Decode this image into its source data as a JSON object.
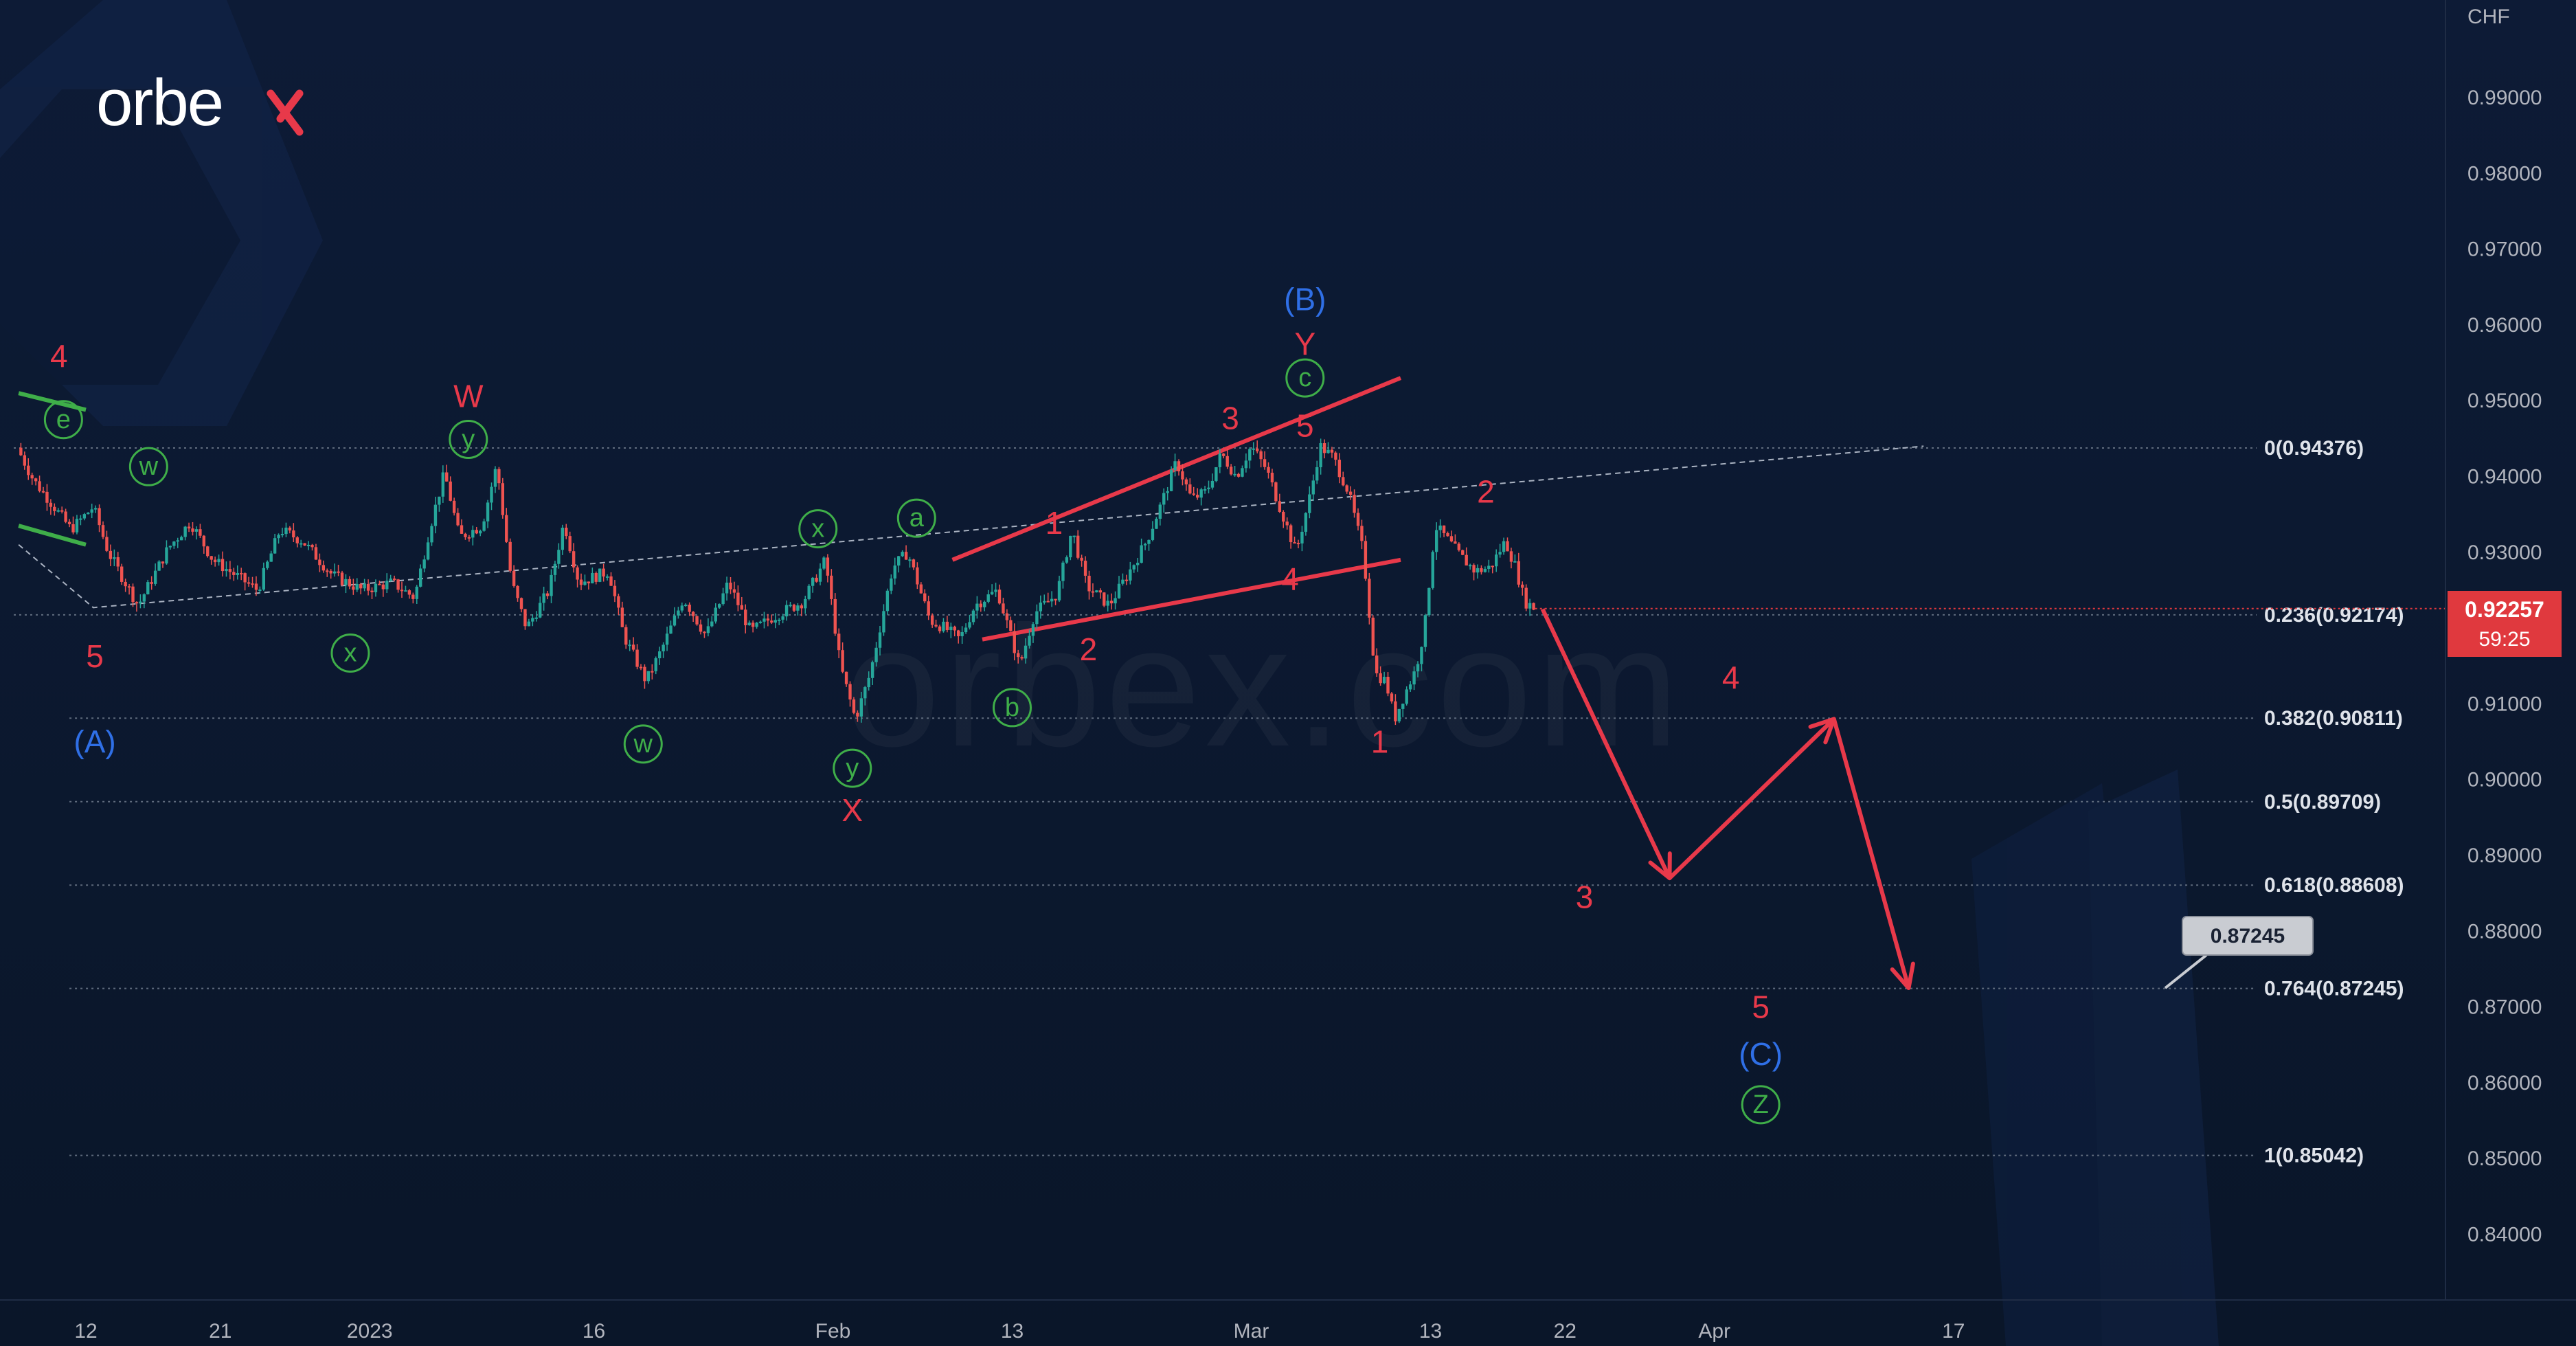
{
  "brand": {
    "name": "orbex",
    "watermark": "orbex.com"
  },
  "axis": {
    "currency": "CHF"
  },
  "price_badge": {
    "value": "0.92257",
    "countdown": "59:25"
  },
  "target_badge": {
    "value": "0.87245"
  },
  "colors": {
    "background": "#0c1a33",
    "up_candle": "#26a69a",
    "down_candle": "#ef5350",
    "red_label": "#e8394a",
    "green_label": "#3fae49",
    "blue_label": "#2f6fe6",
    "projection": "#e8394a",
    "green_trend": "#3fae49",
    "fib_line": "#5f6b7d",
    "badge_red": "#e0393e"
  },
  "chart_data": {
    "type": "candlestick",
    "ylim": [
      0.832,
      1.002
    ],
    "y_ticks": [
      "0.99000",
      "0.98000",
      "0.97000",
      "0.96000",
      "0.95000",
      "0.94000",
      "0.93000",
      "0.92000",
      "0.91000",
      "0.90000",
      "0.89000",
      "0.88000",
      "0.87000",
      "0.86000",
      "0.85000",
      "0.84000"
    ],
    "y_tick_values": [
      0.99,
      0.98,
      0.97,
      0.96,
      0.95,
      0.94,
      0.93,
      0.92,
      0.91,
      0.9,
      0.89,
      0.88,
      0.87,
      0.86,
      0.85,
      0.84
    ],
    "x_ticks": [
      {
        "label": "12",
        "day": 0
      },
      {
        "label": "21",
        "day": 9
      },
      {
        "label": "2023",
        "day": 19
      },
      {
        "label": "16",
        "day": 34
      },
      {
        "label": "Feb",
        "day": 50
      },
      {
        "label": "13",
        "day": 62
      },
      {
        "label": "Mar",
        "day": 78
      },
      {
        "label": "13",
        "day": 90
      },
      {
        "label": "22",
        "day": 99
      },
      {
        "label": "Apr",
        "day": 109
      },
      {
        "label": "17",
        "day": 125
      }
    ],
    "fib_levels": [
      {
        "label": "0(0.94376)",
        "value": 0.94376
      },
      {
        "label": "0.236(0.92174)",
        "value": 0.92174
      },
      {
        "label": "0.382(0.90811)",
        "value": 0.90811
      },
      {
        "label": "0.5(0.89709)",
        "value": 0.89709
      },
      {
        "label": "0.618(0.88608)",
        "value": 0.88608
      },
      {
        "label": "0.764(0.87245)",
        "value": 0.87245
      },
      {
        "label": "1(0.85042)",
        "value": 0.85042
      }
    ],
    "price_path": [
      [
        -4.6,
        0.9438
      ],
      [
        -3.5,
        0.9395
      ],
      [
        -2.5,
        0.937
      ],
      [
        -1,
        0.933
      ],
      [
        0.5,
        0.936
      ],
      [
        1.5,
        0.93
      ],
      [
        3.5,
        0.923
      ],
      [
        5.5,
        0.9305
      ],
      [
        7,
        0.934
      ],
      [
        8.5,
        0.929
      ],
      [
        10,
        0.927
      ],
      [
        11.5,
        0.925
      ],
      [
        13,
        0.933
      ],
      [
        14.5,
        0.9315
      ],
      [
        16.5,
        0.927
      ],
      [
        18.5,
        0.925
      ],
      [
        20.5,
        0.926
      ],
      [
        22,
        0.924
      ],
      [
        23,
        0.933
      ],
      [
        24,
        0.9405
      ],
      [
        25,
        0.932
      ],
      [
        26.5,
        0.9335
      ],
      [
        27.5,
        0.9415
      ],
      [
        28.5,
        0.926
      ],
      [
        29.5,
        0.92
      ],
      [
        31,
        0.925
      ],
      [
        32,
        0.934
      ],
      [
        33,
        0.926
      ],
      [
        35,
        0.9275
      ],
      [
        36,
        0.919
      ],
      [
        37.5,
        0.913
      ],
      [
        38.5,
        0.917
      ],
      [
        40,
        0.924
      ],
      [
        41.5,
        0.919
      ],
      [
        43,
        0.926
      ],
      [
        44.5,
        0.9195
      ],
      [
        46,
        0.9215
      ],
      [
        48,
        0.9235
      ],
      [
        49.5,
        0.929
      ],
      [
        50.5,
        0.915
      ],
      [
        51.5,
        0.908
      ],
      [
        52.5,
        0.914
      ],
      [
        54,
        0.928
      ],
      [
        55,
        0.93
      ],
      [
        56.5,
        0.921
      ],
      [
        57.5,
        0.92
      ],
      [
        58.5,
        0.9185
      ],
      [
        59.5,
        0.923
      ],
      [
        61,
        0.925
      ],
      [
        62.5,
        0.915
      ],
      [
        63.5,
        0.922
      ],
      [
        65,
        0.9245
      ],
      [
        66,
        0.933
      ],
      [
        67,
        0.9255
      ],
      [
        68.5,
        0.923
      ],
      [
        70,
        0.928
      ],
      [
        71,
        0.9315
      ],
      [
        72,
        0.9365
      ],
      [
        73,
        0.942
      ],
      [
        74,
        0.937
      ],
      [
        75,
        0.938
      ],
      [
        76,
        0.943
      ],
      [
        77,
        0.94
      ],
      [
        78,
        0.944
      ],
      [
        79,
        0.941
      ],
      [
        80,
        0.9355
      ],
      [
        81,
        0.93
      ],
      [
        82,
        0.938
      ],
      [
        82.6,
        0.944
      ],
      [
        83.5,
        0.9425
      ],
      [
        84.5,
        0.938
      ],
      [
        85.5,
        0.93
      ],
      [
        86.3,
        0.914
      ],
      [
        87,
        0.913
      ],
      [
        87.6,
        0.908
      ],
      [
        88.2,
        0.911
      ],
      [
        89,
        0.9145
      ],
      [
        89.6,
        0.92
      ],
      [
        90.3,
        0.9335
      ],
      [
        91,
        0.932
      ],
      [
        92,
        0.9295
      ],
      [
        93,
        0.9275
      ],
      [
        94,
        0.928
      ],
      [
        95,
        0.9315
      ],
      [
        95.7,
        0.928
      ],
      [
        96.3,
        0.9235
      ],
      [
        97,
        0.9226
      ]
    ],
    "projection": [
      [
        97.5,
        0.9225
      ],
      [
        106,
        0.887
      ],
      [
        117,
        0.908
      ],
      [
        122,
        0.8725
      ]
    ],
    "trendlines": {
      "dashed_channel": [
        [
          -4.5,
          0.931
        ],
        [
          0.5,
          0.9227
        ],
        [
          123,
          0.944
        ]
      ],
      "wedge_upper": [
        [
          58,
          0.929
        ],
        [
          88,
          0.953
        ]
      ],
      "wedge_lower": [
        [
          60,
          0.9185
        ],
        [
          88,
          0.929
        ]
      ],
      "green_upper": [
        [
          -4.5,
          0.951
        ],
        [
          0,
          0.9488
        ]
      ],
      "green_lower": [
        [
          -4.5,
          0.9335
        ],
        [
          0,
          0.931
        ]
      ]
    },
    "wave_labels": [
      {
        "text": "4",
        "day": -1.8,
        "price": 0.9559,
        "color": "red"
      },
      {
        "text": "e",
        "day": -1.5,
        "price": 0.9475,
        "color": "green",
        "circled": true
      },
      {
        "text": "5",
        "day": 0.6,
        "price": 0.9163,
        "color": "red"
      },
      {
        "text": "(A)",
        "day": 0.6,
        "price": 0.905,
        "color": "blue"
      },
      {
        "text": "w",
        "day": 4.2,
        "price": 0.9413,
        "color": "green",
        "circled": true
      },
      {
        "text": "x",
        "day": 17.7,
        "price": 0.9167,
        "color": "green",
        "circled": true
      },
      {
        "text": "W",
        "day": 25.6,
        "price": 0.9506,
        "color": "red"
      },
      {
        "text": "y",
        "day": 25.6,
        "price": 0.9449,
        "color": "green",
        "circled": true
      },
      {
        "text": "w",
        "day": 37.3,
        "price": 0.9047,
        "color": "green",
        "circled": true
      },
      {
        "text": "x",
        "day": 49.0,
        "price": 0.9331,
        "color": "green",
        "circled": true
      },
      {
        "text": "y",
        "day": 51.3,
        "price": 0.9015,
        "color": "green",
        "circled": true
      },
      {
        "text": "X",
        "day": 51.3,
        "price": 0.896,
        "color": "red"
      },
      {
        "text": "a",
        "day": 55.6,
        "price": 0.9345,
        "color": "green",
        "circled": true
      },
      {
        "text": "1",
        "day": 64.8,
        "price": 0.9339,
        "color": "red"
      },
      {
        "text": "b",
        "day": 62.0,
        "price": 0.9095,
        "color": "green",
        "circled": true
      },
      {
        "text": "2",
        "day": 67.1,
        "price": 0.9172,
        "color": "red"
      },
      {
        "text": "3",
        "day": 76.6,
        "price": 0.9477,
        "color": "red"
      },
      {
        "text": "4",
        "day": 80.6,
        "price": 0.9265,
        "color": "red"
      },
      {
        "text": "5",
        "day": 81.6,
        "price": 0.9467,
        "color": "red"
      },
      {
        "text": "(B)",
        "day": 81.6,
        "price": 0.9634,
        "color": "blue"
      },
      {
        "text": "Y",
        "day": 81.6,
        "price": 0.9575,
        "color": "red"
      },
      {
        "text": "c",
        "day": 81.6,
        "price": 0.953,
        "color": "green",
        "circled": true
      },
      {
        "text": "1",
        "day": 86.6,
        "price": 0.905,
        "color": "red"
      },
      {
        "text": "2",
        "day": 93.7,
        "price": 0.938,
        "color": "red"
      },
      {
        "text": "3",
        "day": 100.3,
        "price": 0.8845,
        "color": "red"
      },
      {
        "text": "4",
        "day": 110.1,
        "price": 0.9135,
        "color": "red"
      },
      {
        "text": "5",
        "day": 112.1,
        "price": 0.87,
        "color": "red"
      },
      {
        "text": "(C)",
        "day": 112.1,
        "price": 0.8638,
        "color": "blue"
      },
      {
        "text": "Z",
        "day": 112.1,
        "price": 0.8571,
        "color": "green",
        "circled": true
      }
    ],
    "last_price": 0.92257,
    "target_price": 0.87245
  }
}
